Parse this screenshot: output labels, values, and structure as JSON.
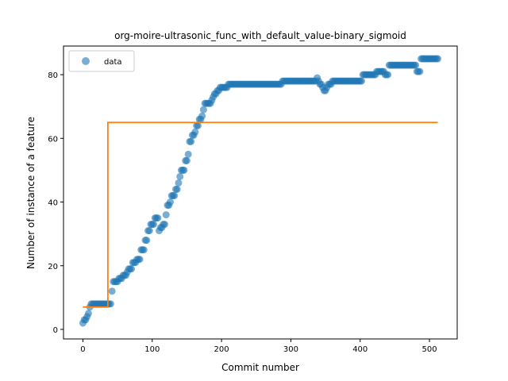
{
  "chart_data": {
    "type": "scatter",
    "title": "org-moire-ultrasonic_func_with_default_value-binary_sigmoid",
    "xlabel": "Commit number",
    "ylabel": "Number of instance of a feature",
    "xlim": [
      -28,
      540
    ],
    "ylim": [
      -3,
      89
    ],
    "xticks": [
      0,
      100,
      200,
      300,
      400,
      500
    ],
    "yticks": [
      0,
      20,
      40,
      60,
      80
    ],
    "grid": false,
    "legend": {
      "placement": "top-left",
      "entries": [
        "data"
      ]
    },
    "colors": {
      "scatter": "#1f77b4",
      "fit": "#ff7f0e"
    },
    "series": [
      {
        "name": "data",
        "kind": "scatter",
        "points": [
          [
            0,
            2
          ],
          [
            2,
            3
          ],
          [
            4,
            3
          ],
          [
            6,
            4
          ],
          [
            8,
            5
          ],
          [
            10,
            7
          ],
          [
            12,
            8
          ],
          [
            14,
            8
          ],
          [
            16,
            8
          ],
          [
            18,
            8
          ],
          [
            20,
            8
          ],
          [
            22,
            8
          ],
          [
            24,
            8
          ],
          [
            26,
            8
          ],
          [
            28,
            8
          ],
          [
            30,
            8
          ],
          [
            32,
            8
          ],
          [
            34,
            8
          ],
          [
            36,
            8
          ],
          [
            38,
            8
          ],
          [
            40,
            8
          ],
          [
            42,
            12
          ],
          [
            44,
            15
          ],
          [
            46,
            15
          ],
          [
            48,
            15
          ],
          [
            50,
            15
          ],
          [
            52,
            16
          ],
          [
            54,
            16
          ],
          [
            56,
            16
          ],
          [
            58,
            17
          ],
          [
            60,
            17
          ],
          [
            62,
            17
          ],
          [
            64,
            18
          ],
          [
            66,
            19
          ],
          [
            68,
            19
          ],
          [
            70,
            19
          ],
          [
            72,
            21
          ],
          [
            74,
            21
          ],
          [
            76,
            21
          ],
          [
            78,
            22
          ],
          [
            80,
            22
          ],
          [
            82,
            22
          ],
          [
            84,
            25
          ],
          [
            86,
            25
          ],
          [
            88,
            25
          ],
          [
            90,
            28
          ],
          [
            92,
            28
          ],
          [
            94,
            31
          ],
          [
            96,
            31
          ],
          [
            98,
            33
          ],
          [
            100,
            33
          ],
          [
            102,
            33
          ],
          [
            104,
            35
          ],
          [
            106,
            35
          ],
          [
            108,
            35
          ],
          [
            110,
            31
          ],
          [
            112,
            32
          ],
          [
            114,
            32
          ],
          [
            116,
            33
          ],
          [
            118,
            33
          ],
          [
            120,
            36
          ],
          [
            122,
            39
          ],
          [
            124,
            39
          ],
          [
            126,
            40
          ],
          [
            128,
            42
          ],
          [
            130,
            42
          ],
          [
            132,
            42
          ],
          [
            134,
            44
          ],
          [
            136,
            44
          ],
          [
            138,
            46
          ],
          [
            140,
            48
          ],
          [
            142,
            50
          ],
          [
            144,
            50
          ],
          [
            146,
            50
          ],
          [
            148,
            53
          ],
          [
            150,
            53
          ],
          [
            152,
            55
          ],
          [
            154,
            59
          ],
          [
            156,
            59
          ],
          [
            158,
            61
          ],
          [
            160,
            61
          ],
          [
            162,
            62
          ],
          [
            164,
            64
          ],
          [
            166,
            64
          ],
          [
            168,
            66
          ],
          [
            170,
            66
          ],
          [
            172,
            67
          ],
          [
            174,
            69
          ],
          [
            176,
            71
          ],
          [
            178,
            71
          ],
          [
            180,
            71
          ],
          [
            182,
            71
          ],
          [
            184,
            71
          ],
          [
            186,
            72
          ],
          [
            188,
            73
          ],
          [
            190,
            74
          ],
          [
            192,
            74
          ],
          [
            194,
            75
          ],
          [
            196,
            75
          ],
          [
            198,
            76
          ],
          [
            200,
            76
          ],
          [
            202,
            76
          ],
          [
            204,
            76
          ],
          [
            206,
            76
          ],
          [
            208,
            76
          ],
          [
            210,
            77
          ],
          [
            212,
            77
          ],
          [
            214,
            77
          ],
          [
            216,
            77
          ],
          [
            218,
            77
          ],
          [
            220,
            77
          ],
          [
            222,
            77
          ],
          [
            224,
            77
          ],
          [
            226,
            77
          ],
          [
            228,
            77
          ],
          [
            230,
            77
          ],
          [
            232,
            77
          ],
          [
            234,
            77
          ],
          [
            236,
            77
          ],
          [
            238,
            77
          ],
          [
            240,
            77
          ],
          [
            242,
            77
          ],
          [
            244,
            77
          ],
          [
            246,
            77
          ],
          [
            248,
            77
          ],
          [
            250,
            77
          ],
          [
            252,
            77
          ],
          [
            254,
            77
          ],
          [
            256,
            77
          ],
          [
            258,
            77
          ],
          [
            260,
            77
          ],
          [
            262,
            77
          ],
          [
            264,
            77
          ],
          [
            266,
            77
          ],
          [
            268,
            77
          ],
          [
            270,
            77
          ],
          [
            272,
            77
          ],
          [
            274,
            77
          ],
          [
            276,
            77
          ],
          [
            278,
            77
          ],
          [
            280,
            77
          ],
          [
            282,
            77
          ],
          [
            284,
            77
          ],
          [
            286,
            77
          ],
          [
            288,
            78
          ],
          [
            290,
            78
          ],
          [
            292,
            78
          ],
          [
            294,
            78
          ],
          [
            296,
            78
          ],
          [
            298,
            78
          ],
          [
            300,
            78
          ],
          [
            302,
            78
          ],
          [
            304,
            78
          ],
          [
            306,
            78
          ],
          [
            308,
            78
          ],
          [
            310,
            78
          ],
          [
            312,
            78
          ],
          [
            314,
            78
          ],
          [
            316,
            78
          ],
          [
            318,
            78
          ],
          [
            320,
            78
          ],
          [
            322,
            78
          ],
          [
            324,
            78
          ],
          [
            326,
            78
          ],
          [
            328,
            78
          ],
          [
            330,
            78
          ],
          [
            332,
            78
          ],
          [
            334,
            78
          ],
          [
            336,
            78
          ],
          [
            338,
            79
          ],
          [
            340,
            78
          ],
          [
            342,
            77
          ],
          [
            344,
            77
          ],
          [
            346,
            76
          ],
          [
            348,
            75
          ],
          [
            350,
            75
          ],
          [
            352,
            76
          ],
          [
            354,
            77
          ],
          [
            356,
            77
          ],
          [
            358,
            77
          ],
          [
            360,
            78
          ],
          [
            362,
            78
          ],
          [
            364,
            78
          ],
          [
            366,
            78
          ],
          [
            368,
            78
          ],
          [
            370,
            78
          ],
          [
            372,
            78
          ],
          [
            374,
            78
          ],
          [
            376,
            78
          ],
          [
            378,
            78
          ],
          [
            380,
            78
          ],
          [
            382,
            78
          ],
          [
            384,
            78
          ],
          [
            386,
            78
          ],
          [
            388,
            78
          ],
          [
            390,
            78
          ],
          [
            392,
            78
          ],
          [
            394,
            78
          ],
          [
            396,
            78
          ],
          [
            398,
            78
          ],
          [
            400,
            78
          ],
          [
            402,
            78
          ],
          [
            404,
            80
          ],
          [
            406,
            80
          ],
          [
            408,
            80
          ],
          [
            410,
            80
          ],
          [
            412,
            80
          ],
          [
            414,
            80
          ],
          [
            416,
            80
          ],
          [
            418,
            80
          ],
          [
            420,
            80
          ],
          [
            422,
            80
          ],
          [
            424,
            81
          ],
          [
            426,
            81
          ],
          [
            428,
            81
          ],
          [
            430,
            81
          ],
          [
            432,
            81
          ],
          [
            434,
            81
          ],
          [
            436,
            80
          ],
          [
            438,
            80
          ],
          [
            440,
            80
          ],
          [
            442,
            83
          ],
          [
            444,
            83
          ],
          [
            446,
            83
          ],
          [
            448,
            83
          ],
          [
            450,
            83
          ],
          [
            452,
            83
          ],
          [
            454,
            83
          ],
          [
            456,
            83
          ],
          [
            458,
            83
          ],
          [
            460,
            83
          ],
          [
            462,
            83
          ],
          [
            464,
            83
          ],
          [
            466,
            83
          ],
          [
            468,
            83
          ],
          [
            470,
            83
          ],
          [
            472,
            83
          ],
          [
            474,
            83
          ],
          [
            476,
            83
          ],
          [
            478,
            83
          ],
          [
            480,
            83
          ],
          [
            482,
            81
          ],
          [
            484,
            81
          ],
          [
            486,
            81
          ],
          [
            488,
            85
          ],
          [
            490,
            85
          ],
          [
            492,
            85
          ],
          [
            494,
            85
          ],
          [
            496,
            85
          ],
          [
            498,
            85
          ],
          [
            500,
            85
          ],
          [
            502,
            85
          ],
          [
            504,
            85
          ],
          [
            506,
            85
          ],
          [
            508,
            85
          ],
          [
            510,
            85
          ],
          [
            512,
            85
          ]
        ]
      },
      {
        "name": "",
        "kind": "step-line",
        "points": [
          [
            0,
            7
          ],
          [
            36,
            7
          ],
          [
            36,
            65
          ],
          [
            512,
            65
          ]
        ]
      }
    ]
  }
}
